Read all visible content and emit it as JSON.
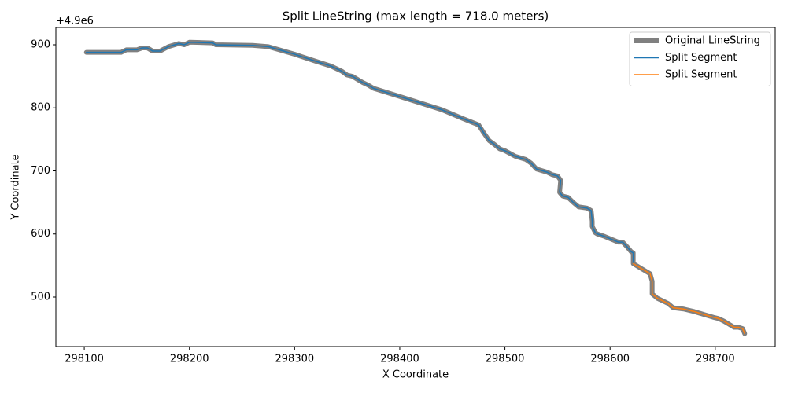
{
  "chart_data": {
    "type": "line",
    "title": "Split LineString (max length = 718.0 meters)",
    "x_label": "X Coordinate",
    "y_label": "Y Coordinate",
    "y_offset_label": "+4.9e6",
    "xlim": [
      298073,
      298757
    ],
    "ylim": [
      421.5,
      927.4
    ],
    "xticks": [
      298100,
      298200,
      298300,
      298400,
      298500,
      298600,
      298700
    ],
    "yticks": [
      500,
      600,
      700,
      800,
      900
    ],
    "legend": "upper right",
    "series": [
      {
        "name": "Original LineString",
        "color": "#808080",
        "width": 6,
        "x": [
          298102,
          298135,
          298140,
          298150,
          298155,
          298160,
          298165,
          298172,
          298180,
          298190,
          298195,
          298200,
          298222,
          298225,
          298260,
          298275,
          298300,
          298320,
          298335,
          298345,
          298350,
          298355,
          298365,
          298370,
          298375,
          298400,
          298440,
          298460,
          298475,
          298480,
          298485,
          298490,
          298495,
          298500,
          298510,
          298520,
          298525,
          298530,
          298540,
          298545,
          298550,
          298553,
          298552,
          298555,
          298560,
          298565,
          298570,
          298578,
          298582,
          298583,
          298583,
          298586,
          298588,
          298595,
          298608,
          298612,
          298616,
          298620,
          298622,
          298622,
          298630,
          298635,
          298638,
          298640,
          298640,
          298645,
          298650,
          298655,
          298660,
          298670,
          298680,
          298690,
          298698,
          298703,
          298708,
          298712,
          298718,
          298722,
          298726,
          298728
        ],
        "y": [
          888,
          888,
          892,
          892,
          895,
          895,
          890,
          890,
          897,
          902,
          900,
          904,
          903,
          900,
          899,
          897,
          885,
          874,
          866,
          858,
          852,
          850,
          840,
          836,
          831,
          818,
          797,
          783,
          773,
          760,
          748,
          742,
          735,
          732,
          723,
          718,
          712,
          703,
          698,
          694,
          692,
          685,
          666,
          660,
          658,
          650,
          643,
          641,
          637,
          620,
          612,
          602,
          600,
          596,
          587,
          587,
          580,
          572,
          570,
          553,
          545,
          540,
          537,
          525,
          505,
          498,
          494,
          490,
          483,
          481,
          477,
          472,
          468,
          466,
          462,
          458,
          452,
          452,
          450,
          442
        ]
      },
      {
        "name": "Split Segment",
        "color": "#1f77b4",
        "width": 1.5,
        "x": [
          298102,
          298135,
          298140,
          298150,
          298155,
          298160,
          298165,
          298172,
          298180,
          298190,
          298195,
          298200,
          298222,
          298225,
          298260,
          298275,
          298300,
          298320,
          298335,
          298345,
          298350,
          298355,
          298365,
          298370,
          298375,
          298400,
          298440,
          298460,
          298475,
          298480,
          298485,
          298490,
          298495,
          298500,
          298510,
          298520,
          298525,
          298530,
          298540,
          298545,
          298550,
          298553,
          298552,
          298555,
          298560,
          298565,
          298570,
          298578,
          298582,
          298583,
          298583,
          298586,
          298588,
          298595,
          298608,
          298612,
          298616,
          298620,
          298622,
          298622
        ],
        "y": [
          888,
          888,
          892,
          892,
          895,
          895,
          890,
          890,
          897,
          902,
          900,
          904,
          903,
          900,
          899,
          897,
          885,
          874,
          866,
          858,
          852,
          850,
          840,
          836,
          831,
          818,
          797,
          783,
          773,
          760,
          748,
          742,
          735,
          732,
          723,
          718,
          712,
          703,
          698,
          694,
          692,
          685,
          666,
          660,
          658,
          650,
          643,
          641,
          637,
          620,
          612,
          602,
          600,
          596,
          587,
          587,
          580,
          572,
          570,
          553
        ]
      },
      {
        "name": "Split Segment",
        "color": "#ff7f0e",
        "width": 1.5,
        "x": [
          298622,
          298630,
          298635,
          298638,
          298640,
          298640,
          298645,
          298650,
          298655,
          298660,
          298670,
          298680,
          298690,
          298698,
          298703,
          298708,
          298712,
          298718,
          298722,
          298726,
          298728
        ],
        "y": [
          553,
          545,
          540,
          537,
          525,
          505,
          498,
          494,
          490,
          483,
          481,
          477,
          472,
          468,
          466,
          462,
          458,
          452,
          452,
          450,
          442
        ]
      }
    ]
  }
}
